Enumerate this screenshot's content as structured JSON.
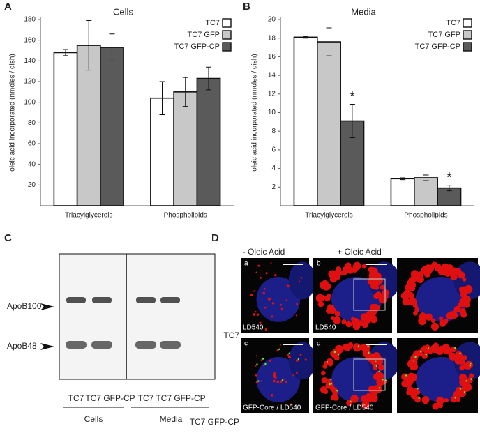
{
  "chart_data": [
    {
      "panel": "A",
      "type": "bar",
      "title": "Cells",
      "y_label": "oleic acid incorporated (nmoles / dish)",
      "categories": [
        "Triacylglycerols",
        "Phospholipids"
      ],
      "series": [
        {
          "name": "TC7",
          "color": "#ffffff",
          "values": [
            148,
            104
          ],
          "errors": [
            3,
            16
          ]
        },
        {
          "name": "TC7 GFP",
          "color": "#c8c8c8",
          "values": [
            155,
            110
          ],
          "errors": [
            24,
            14
          ]
        },
        {
          "name": "TC7 GFP-CP",
          "color": "#5a5a5a",
          "values": [
            153,
            123
          ],
          "errors": [
            13,
            11
          ]
        }
      ],
      "ylim": [
        0,
        180
      ],
      "yticks": [
        20,
        40,
        60,
        80,
        100,
        120,
        140,
        160,
        180
      ]
    },
    {
      "panel": "B",
      "type": "bar",
      "title": "Media",
      "y_label": "oleic acid incorporated (nmoles / dish)",
      "categories": [
        "Triacylglycerols",
        "Phospholipids"
      ],
      "series": [
        {
          "name": "TC7",
          "color": "#ffffff",
          "values": [
            18.1,
            2.9
          ],
          "errors": [
            0.1,
            0.1
          ]
        },
        {
          "name": "TC7 GFP",
          "color": "#c8c8c8",
          "values": [
            17.6,
            3.0
          ],
          "errors": [
            1.5,
            0.3
          ]
        },
        {
          "name": "TC7 GFP-CP",
          "color": "#5a5a5a",
          "values": [
            9.1,
            1.9
          ],
          "errors": [
            1.8,
            0.3
          ],
          "annotations": [
            "*",
            "*"
          ]
        }
      ],
      "ylim": [
        0,
        20
      ],
      "yticks": [
        2,
        4,
        6,
        8,
        10,
        12,
        14,
        16,
        18,
        20
      ]
    }
  ],
  "blot": {
    "panel": "C",
    "bands": [
      "ApoB100",
      "ApoB48"
    ],
    "lanes": [
      "TC7",
      "TC7 GFP-CP",
      "TC7",
      "TC7 GFP-CP"
    ],
    "groups": [
      "Cells",
      "Media"
    ]
  },
  "micrographs": {
    "panel": "D",
    "columns": [
      "- Oleic Acid",
      "+ Oleic Acid"
    ],
    "rows": [
      {
        "label": "TC7",
        "images": [
          {
            "letter": "a",
            "caption": "LD540"
          },
          {
            "letter": "b",
            "caption": "LD540"
          }
        ]
      },
      {
        "label": "TC7 GFP-CP",
        "images": [
          {
            "letter": "c",
            "caption": "GFP-Core / LD540"
          },
          {
            "letter": "d",
            "caption": "GFP-Core / LD540"
          }
        ]
      }
    ]
  }
}
